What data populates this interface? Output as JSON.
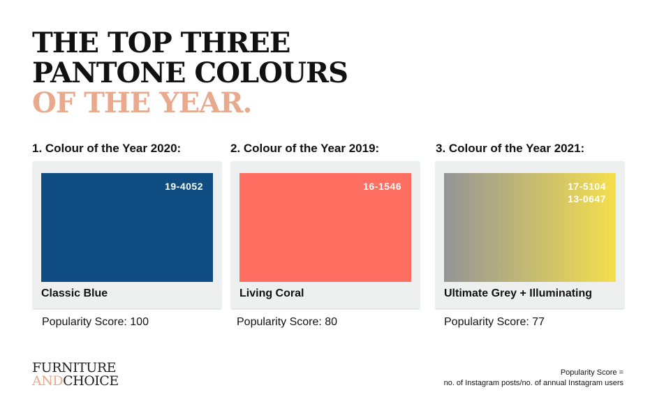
{
  "title": {
    "line1": "THE TOP THREE",
    "line2": "PANTONE COLOURS",
    "line3": "OF THE YEAR."
  },
  "colors": {
    "accent": "#e8a98c",
    "card_bg": "#eeefef",
    "text": "#111111"
  },
  "cards": [
    {
      "heading": "1. Colour of the Year 2020:",
      "swatch_colors": [
        "#0f4c81"
      ],
      "codes": [
        "19-4052"
      ],
      "name": "Classic Blue",
      "score": "Popularity Score: 100"
    },
    {
      "heading": "2. Colour of the Year 2019:",
      "swatch_colors": [
        "#ff6f61"
      ],
      "codes": [
        "16-1546"
      ],
      "name": "Living Coral",
      "score": "Popularity Score: 80"
    },
    {
      "heading": "3. Colour of the Year 2021:",
      "swatch_colors": [
        "#939597",
        "#f5df4d"
      ],
      "codes": [
        "17-5104",
        "13-0647"
      ],
      "name": "Ultimate Grey + Illuminating",
      "score": "Popularity Score: 77"
    }
  ],
  "logo": {
    "line1": "FURNITURE",
    "line2_a": "AND",
    "line2_b": "CHOICE"
  },
  "footnote": {
    "line1": "Popularity Score =",
    "line2": "no. of Instagram posts/no. of annual Instagram users"
  }
}
